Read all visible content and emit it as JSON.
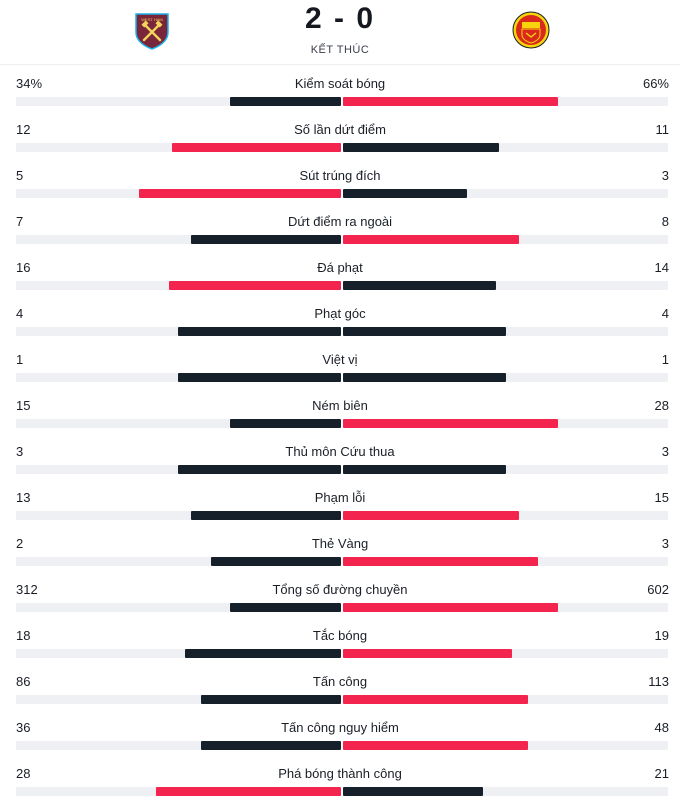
{
  "match": {
    "score": "2 - 0",
    "status": "KẾT THÚC",
    "home_team_crest": "west-ham-crest",
    "away_team_crest": "manchester-united-crest"
  },
  "colors": {
    "leader": "#f3244d",
    "trailer": "#15202b",
    "track": "#eef0f3"
  },
  "stats": [
    {
      "label": "Kiểm soát bóng",
      "home": "34%",
      "away": "66%",
      "home_share": 0.34,
      "away_share": 0.66
    },
    {
      "label": "Số lần dứt điểm",
      "home": "12",
      "away": "11",
      "home_share": 0.52,
      "away_share": 0.48
    },
    {
      "label": "Sút trúng đích",
      "home": "5",
      "away": "3",
      "home_share": 0.62,
      "away_share": 0.38
    },
    {
      "label": "Dứt điểm ra ngoài",
      "home": "7",
      "away": "8",
      "home_share": 0.46,
      "away_share": 0.54
    },
    {
      "label": "Đá phạt",
      "home": "16",
      "away": "14",
      "home_share": 0.53,
      "away_share": 0.47
    },
    {
      "label": "Phạt góc",
      "home": "4",
      "away": "4",
      "home_share": 0.5,
      "away_share": 0.5
    },
    {
      "label": "Việt vị",
      "home": "1",
      "away": "1",
      "home_share": 0.5,
      "away_share": 0.5
    },
    {
      "label": "Ném biên",
      "home": "15",
      "away": "28",
      "home_share": 0.34,
      "away_share": 0.66
    },
    {
      "label": "Thủ môn Cứu thua",
      "home": "3",
      "away": "3",
      "home_share": 0.5,
      "away_share": 0.5
    },
    {
      "label": "Phạm lỗi",
      "home": "13",
      "away": "15",
      "home_share": 0.46,
      "away_share": 0.54
    },
    {
      "label": "Thẻ Vàng",
      "home": "2",
      "away": "3",
      "home_share": 0.4,
      "away_share": 0.6
    },
    {
      "label": "Tổng số đường chuyền",
      "home": "312",
      "away": "602",
      "home_share": 0.34,
      "away_share": 0.66
    },
    {
      "label": "Tắc bóng",
      "home": "18",
      "away": "19",
      "home_share": 0.48,
      "away_share": 0.52
    },
    {
      "label": "Tấn công",
      "home": "86",
      "away": "113",
      "home_share": 0.43,
      "away_share": 0.57
    },
    {
      "label": "Tấn công nguy hiểm",
      "home": "36",
      "away": "48",
      "home_share": 0.43,
      "away_share": 0.57
    },
    {
      "label": "Phá bóng thành công",
      "home": "28",
      "away": "21",
      "home_share": 0.57,
      "away_share": 0.43
    }
  ]
}
